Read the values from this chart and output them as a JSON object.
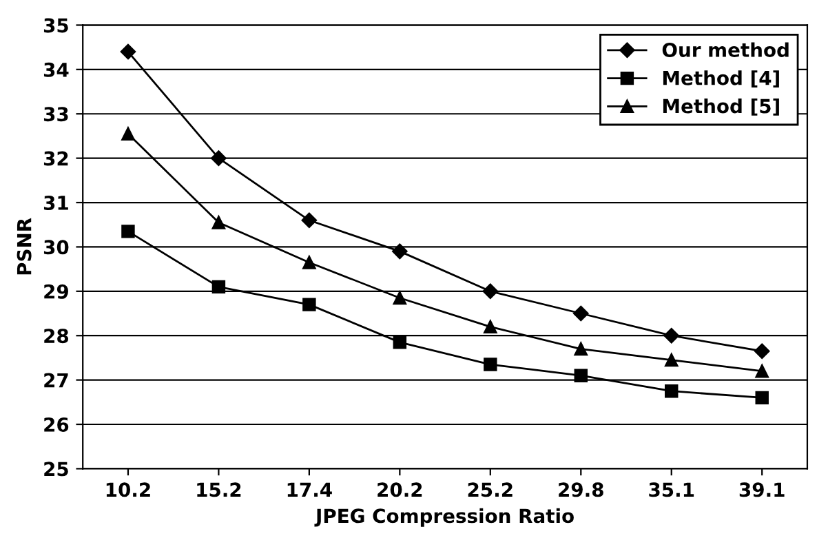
{
  "chart_data": {
    "type": "line",
    "xlabel": "JPEG Compression Ratio",
    "ylabel": "PSNR",
    "categories": [
      "10.2",
      "15.2",
      "17.4",
      "20.2",
      "25.2",
      "29.8",
      "35.1",
      "39.1"
    ],
    "series": [
      {
        "name": "Our method",
        "color": "#000000",
        "marker": "diamond",
        "values": [
          34.4,
          32.0,
          30.6,
          29.9,
          29.0,
          28.5,
          28.0,
          27.65
        ]
      },
      {
        "name": "Method [4]",
        "color": "#000000",
        "marker": "square",
        "values": [
          30.35,
          29.1,
          28.7,
          27.85,
          27.35,
          27.1,
          26.75,
          26.6
        ]
      },
      {
        "name": "Method [5]",
        "color": "#000000",
        "marker": "triangle",
        "values": [
          32.55,
          30.55,
          29.65,
          28.85,
          28.2,
          27.7,
          27.45,
          27.2
        ]
      }
    ],
    "ylim": [
      25,
      35
    ],
    "yticks": [
      25,
      26,
      27,
      28,
      29,
      30,
      31,
      32,
      33,
      34,
      35
    ],
    "grid": "y",
    "legend": "top right",
    "line_style": "solid"
  }
}
